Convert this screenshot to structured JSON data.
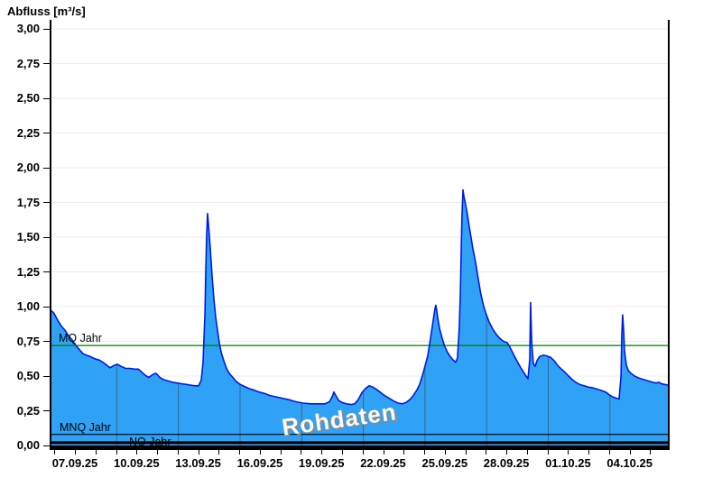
{
  "title": "Abfluss [m³/s]",
  "chart_data": {
    "type": "area",
    "title": "Abfluss [m³/s]",
    "watermark": "Rohdaten",
    "series_name": "Rohdaten",
    "ylim": [
      0,
      3.0
    ],
    "ytick_step": 0.25,
    "ytick_labels": [
      "3,00",
      "2,75",
      "2,50",
      "2,25",
      "2,00",
      "1,75",
      "1,50",
      "1,25",
      "1,00",
      "0,75",
      "0,50",
      "0,25",
      "0,00"
    ],
    "x_start_date": "06.09.25",
    "x_days_total": 30,
    "xtick_labels": [
      "07.09.25",
      "10.09.25",
      "13.09.25",
      "16.09.25",
      "19.09.25",
      "22.09.25",
      "25.09.25",
      "28.09.25",
      "01.10.25",
      "04.10.25"
    ],
    "xtick_label_first_day": 1.14,
    "xtick_label_step_days": 3,
    "x_first_minor_tick_day": 0.14,
    "x_minor_tick_count": 30,
    "gridline_first_day": 3.18,
    "gridline_step_days": 3,
    "gridline_count": 9,
    "grid_horizontal": true,
    "reference_lines": [
      {
        "label": "MQ Jahr",
        "value": 0.72,
        "color": "#007a00",
        "width": 1.3
      },
      {
        "label": "MNQ Jahr",
        "value": 0.08,
        "color": "#000000",
        "width": 1.2
      },
      {
        "label": "NQ Jahr",
        "value": 0.02,
        "color": "#000000",
        "width": 3.0
      }
    ],
    "colors": {
      "area_fill": "#2fa2f5",
      "area_stroke": "#0018e8",
      "h_grid": "#ececec",
      "v_grid": "#3d6587",
      "axis": "#000000"
    },
    "points": [
      [
        0.0,
        0.97
      ],
      [
        0.13,
        0.95
      ],
      [
        0.31,
        0.9
      ],
      [
        0.48,
        0.86
      ],
      [
        0.66,
        0.83
      ],
      [
        0.83,
        0.79
      ],
      [
        1.01,
        0.76
      ],
      [
        1.19,
        0.72
      ],
      [
        1.36,
        0.69
      ],
      [
        1.54,
        0.66
      ],
      [
        1.71,
        0.65
      ],
      [
        1.89,
        0.64
      ],
      [
        2.11,
        0.625
      ],
      [
        2.33,
        0.615
      ],
      [
        2.5,
        0.6
      ],
      [
        2.68,
        0.58
      ],
      [
        2.85,
        0.56
      ],
      [
        3.03,
        0.575
      ],
      [
        3.21,
        0.585
      ],
      [
        3.38,
        0.57
      ],
      [
        3.6,
        0.555
      ],
      [
        3.82,
        0.555
      ],
      [
        4.04,
        0.55
      ],
      [
        4.22,
        0.55
      ],
      [
        4.39,
        0.53
      ],
      [
        4.57,
        0.505
      ],
      [
        4.74,
        0.49
      ],
      [
        4.92,
        0.51
      ],
      [
        5.09,
        0.52
      ],
      [
        5.27,
        0.49
      ],
      [
        5.45,
        0.475
      ],
      [
        5.67,
        0.465
      ],
      [
        5.89,
        0.455
      ],
      [
        6.11,
        0.45
      ],
      [
        6.33,
        0.445
      ],
      [
        6.54,
        0.44
      ],
      [
        6.76,
        0.435
      ],
      [
        6.98,
        0.43
      ],
      [
        7.16,
        0.43
      ],
      [
        7.29,
        0.47
      ],
      [
        7.38,
        0.6
      ],
      [
        7.47,
        0.95
      ],
      [
        7.51,
        1.25
      ],
      [
        7.55,
        1.5
      ],
      [
        7.6,
        1.67
      ],
      [
        7.64,
        1.6
      ],
      [
        7.73,
        1.42
      ],
      [
        7.82,
        1.22
      ],
      [
        7.91,
        1.05
      ],
      [
        7.99,
        0.93
      ],
      [
        8.08,
        0.83
      ],
      [
        8.17,
        0.74
      ],
      [
        8.26,
        0.67
      ],
      [
        8.39,
        0.61
      ],
      [
        8.52,
        0.555
      ],
      [
        8.65,
        0.52
      ],
      [
        8.83,
        0.49
      ],
      [
        9.0,
        0.46
      ],
      [
        9.18,
        0.44
      ],
      [
        9.4,
        0.425
      ],
      [
        9.62,
        0.41
      ],
      [
        9.84,
        0.4
      ],
      [
        10.1,
        0.385
      ],
      [
        10.37,
        0.375
      ],
      [
        10.63,
        0.36
      ],
      [
        10.94,
        0.35
      ],
      [
        11.24,
        0.34
      ],
      [
        11.55,
        0.33
      ],
      [
        11.9,
        0.315
      ],
      [
        12.25,
        0.305
      ],
      [
        12.61,
        0.3
      ],
      [
        12.96,
        0.3
      ],
      [
        13.31,
        0.3
      ],
      [
        13.53,
        0.315
      ],
      [
        13.66,
        0.35
      ],
      [
        13.75,
        0.385
      ],
      [
        13.84,
        0.36
      ],
      [
        13.97,
        0.325
      ],
      [
        14.14,
        0.31
      ],
      [
        14.36,
        0.3
      ],
      [
        14.58,
        0.295
      ],
      [
        14.76,
        0.3
      ],
      [
        14.93,
        0.33
      ],
      [
        15.11,
        0.38
      ],
      [
        15.28,
        0.41
      ],
      [
        15.46,
        0.43
      ],
      [
        15.64,
        0.42
      ],
      [
        15.81,
        0.405
      ],
      [
        15.99,
        0.385
      ],
      [
        16.21,
        0.36
      ],
      [
        16.43,
        0.34
      ],
      [
        16.65,
        0.32
      ],
      [
        16.87,
        0.305
      ],
      [
        17.09,
        0.3
      ],
      [
        17.26,
        0.31
      ],
      [
        17.44,
        0.33
      ],
      [
        17.61,
        0.36
      ],
      [
        17.79,
        0.4
      ],
      [
        17.92,
        0.44
      ],
      [
        18.05,
        0.5
      ],
      [
        18.18,
        0.57
      ],
      [
        18.32,
        0.65
      ],
      [
        18.45,
        0.77
      ],
      [
        18.58,
        0.9
      ],
      [
        18.67,
        0.99
      ],
      [
        18.71,
        1.01
      ],
      [
        18.8,
        0.92
      ],
      [
        18.89,
        0.84
      ],
      [
        19.02,
        0.77
      ],
      [
        19.15,
        0.71
      ],
      [
        19.28,
        0.67
      ],
      [
        19.41,
        0.64
      ],
      [
        19.55,
        0.615
      ],
      [
        19.68,
        0.6
      ],
      [
        19.76,
        0.63
      ],
      [
        19.85,
        0.85
      ],
      [
        19.9,
        1.1
      ],
      [
        19.94,
        1.4
      ],
      [
        19.98,
        1.65
      ],
      [
        20.03,
        1.84
      ],
      [
        20.07,
        1.8
      ],
      [
        20.16,
        1.73
      ],
      [
        20.25,
        1.66
      ],
      [
        20.33,
        1.58
      ],
      [
        20.42,
        1.5
      ],
      [
        20.51,
        1.42
      ],
      [
        20.64,
        1.32
      ],
      [
        20.77,
        1.2
      ],
      [
        20.9,
        1.09
      ],
      [
        21.04,
        1.0
      ],
      [
        21.17,
        0.94
      ],
      [
        21.3,
        0.89
      ],
      [
        21.47,
        0.84
      ],
      [
        21.65,
        0.8
      ],
      [
        21.83,
        0.77
      ],
      [
        22.0,
        0.75
      ],
      [
        22.18,
        0.74
      ],
      [
        22.31,
        0.71
      ],
      [
        22.44,
        0.67
      ],
      [
        22.58,
        0.63
      ],
      [
        22.71,
        0.595
      ],
      [
        22.84,
        0.56
      ],
      [
        22.97,
        0.53
      ],
      [
        23.1,
        0.5
      ],
      [
        23.19,
        0.48
      ],
      [
        23.28,
        0.62
      ],
      [
        23.32,
        1.03
      ],
      [
        23.37,
        0.75
      ],
      [
        23.45,
        0.59
      ],
      [
        23.54,
        0.57
      ],
      [
        23.63,
        0.61
      ],
      [
        23.76,
        0.64
      ],
      [
        23.94,
        0.65
      ],
      [
        24.11,
        0.645
      ],
      [
        24.29,
        0.635
      ],
      [
        24.47,
        0.61
      ],
      [
        24.64,
        0.575
      ],
      [
        24.82,
        0.55
      ],
      [
        25.0,
        0.525
      ],
      [
        25.17,
        0.5
      ],
      [
        25.35,
        0.475
      ],
      [
        25.52,
        0.455
      ],
      [
        25.7,
        0.44
      ],
      [
        25.92,
        0.43
      ],
      [
        26.14,
        0.42
      ],
      [
        26.36,
        0.415
      ],
      [
        26.58,
        0.405
      ],
      [
        26.8,
        0.395
      ],
      [
        26.97,
        0.385
      ],
      [
        27.15,
        0.365
      ],
      [
        27.32,
        0.35
      ],
      [
        27.5,
        0.34
      ],
      [
        27.63,
        0.335
      ],
      [
        27.72,
        0.5
      ],
      [
        27.76,
        0.8
      ],
      [
        27.8,
        0.94
      ],
      [
        27.85,
        0.82
      ],
      [
        27.89,
        0.68
      ],
      [
        27.98,
        0.58
      ],
      [
        28.07,
        0.54
      ],
      [
        28.2,
        0.52
      ],
      [
        28.38,
        0.5
      ],
      [
        28.6,
        0.485
      ],
      [
        28.82,
        0.475
      ],
      [
        29.04,
        0.465
      ],
      [
        29.26,
        0.455
      ],
      [
        29.43,
        0.45
      ],
      [
        29.56,
        0.455
      ],
      [
        29.69,
        0.445
      ],
      [
        29.82,
        0.44
      ],
      [
        30.0,
        0.435
      ]
    ]
  }
}
